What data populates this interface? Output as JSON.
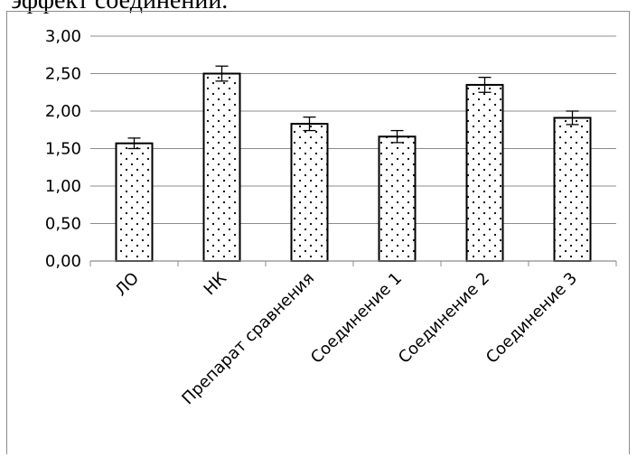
{
  "header_text": "эффект соединений.",
  "chart_data": {
    "type": "bar",
    "categories": [
      "ЛО",
      "НК",
      "Препарат сравнения",
      "Соединение 1",
      "Соединение 2",
      "Соединение 3"
    ],
    "values": [
      1.57,
      2.5,
      1.83,
      1.66,
      2.35,
      1.91
    ],
    "errors": [
      0.07,
      0.1,
      0.09,
      0.08,
      0.1,
      0.09
    ],
    "ylim": [
      0,
      3
    ],
    "ytick_values": [
      0,
      0.5,
      1.0,
      1.5,
      2.0,
      2.5,
      3.0
    ],
    "ytick_labels": [
      "0,00",
      "0,50",
      "1,00",
      "1,50",
      "2,00",
      "2,50",
      "3,00"
    ],
    "grid": true,
    "bar_pattern": "dotted",
    "bar_fill": "#ffffff",
    "bar_edge_color": "#000000",
    "grid_color": "#8c8c8c",
    "title": "",
    "xlabel": "",
    "ylabel": ""
  }
}
